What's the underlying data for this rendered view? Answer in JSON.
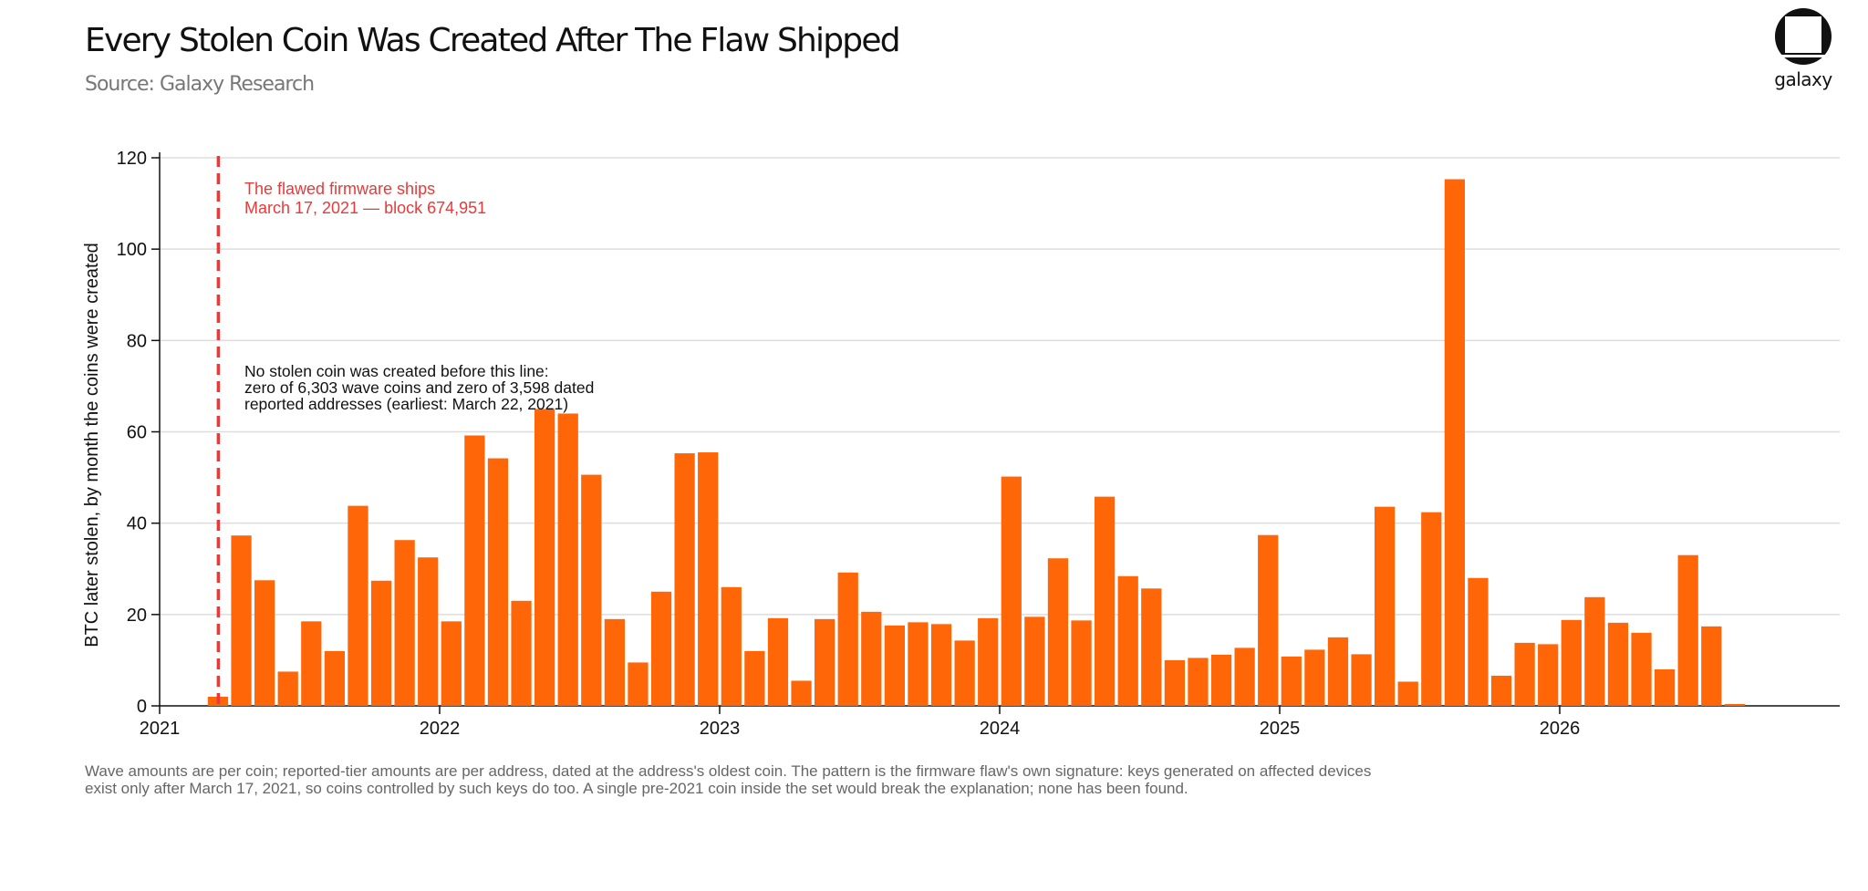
{
  "header": {
    "title": "Every Stolen Coin Was Created After The Flaw Shipped",
    "subtitle": "Source: Galaxy Research"
  },
  "brand": {
    "name": "galaxy",
    "icon": "galaxy-logo-icon"
  },
  "footnote": {
    "line1": "Wave amounts are per coin; reported-tier amounts are per address, dated at the address's oldest coin. The pattern is the firmware flaw's own signature: keys generated on affected devices",
    "line2": "exist only after March 17, 2021, so coins controlled by such keys do too. A single pre-2021 coin inside the set would break the explanation; none has been found."
  },
  "colors": {
    "bar": "#FF6608",
    "marker": "#E83A3A",
    "axis": "#111111",
    "grid": "#DDDDDD"
  },
  "chart_data": {
    "type": "bar",
    "title": "",
    "xlabel": "",
    "ylabel": "BTC later stolen, by month the coins were created",
    "ylim": [
      0,
      120
    ],
    "yticks": [
      0,
      20,
      40,
      60,
      80,
      100,
      120
    ],
    "xlim": [
      "2021-01",
      "2026-12"
    ],
    "xticks": [
      "2021",
      "2022",
      "2023",
      "2024",
      "2025",
      "2026"
    ],
    "grid": true,
    "categories": [
      "2021-03",
      "2021-04",
      "2021-05",
      "2021-06",
      "2021-07",
      "2021-08",
      "2021-09",
      "2021-10",
      "2021-11",
      "2021-12",
      "2022-01",
      "2022-02",
      "2022-03",
      "2022-04",
      "2022-05",
      "2022-06",
      "2022-07",
      "2022-08",
      "2022-09",
      "2022-10",
      "2022-11",
      "2022-12",
      "2023-01",
      "2023-02",
      "2023-03",
      "2023-04",
      "2023-05",
      "2023-06",
      "2023-07",
      "2023-08",
      "2023-09",
      "2023-10",
      "2023-11",
      "2023-12",
      "2024-01",
      "2024-02",
      "2024-03",
      "2024-04",
      "2024-05",
      "2024-06",
      "2024-07",
      "2024-08",
      "2024-09",
      "2024-10",
      "2024-11",
      "2024-12",
      "2025-01",
      "2025-02",
      "2025-03",
      "2025-04",
      "2025-05",
      "2025-06",
      "2025-07",
      "2025-08",
      "2025-09",
      "2025-10",
      "2025-11",
      "2025-12",
      "2026-01",
      "2026-02",
      "2026-03",
      "2026-04",
      "2026-05",
      "2026-06",
      "2026-07",
      "2026-08"
    ],
    "values": [
      2.0,
      37.3,
      27.5,
      7.5,
      18.5,
      12.0,
      43.8,
      27.4,
      36.3,
      32.5,
      18.5,
      59.2,
      54.2,
      23.0,
      65.0,
      64.0,
      50.6,
      19.0,
      9.5,
      25.0,
      55.3,
      55.5,
      26.0,
      12.0,
      19.2,
      5.5,
      19.0,
      29.2,
      20.6,
      17.6,
      18.3,
      17.9,
      14.3,
      19.2,
      50.2,
      19.5,
      32.3,
      18.7,
      45.8,
      28.4,
      25.7,
      10.0,
      10.5,
      11.2,
      12.7,
      37.4,
      10.8,
      12.3,
      15.0,
      11.3,
      43.6,
      5.3,
      42.4,
      115.3,
      28.0,
      6.6,
      13.8,
      13.5,
      18.8,
      23.8,
      18.2,
      16.0,
      8.0,
      33.0,
      17.4,
      0.4
    ],
    "annotations": [
      {
        "type": "vline",
        "x": "2021-03-17",
        "label_line1": "The flawed firmware ships",
        "label_line2": "March 17, 2021 — block 674,951"
      },
      {
        "type": "text",
        "line1": "No stolen coin was created before this line:",
        "line2": "zero of 6,303 wave coins and zero of 3,598 dated",
        "line3": "reported addresses (earliest: March 22, 2021)"
      }
    ]
  }
}
